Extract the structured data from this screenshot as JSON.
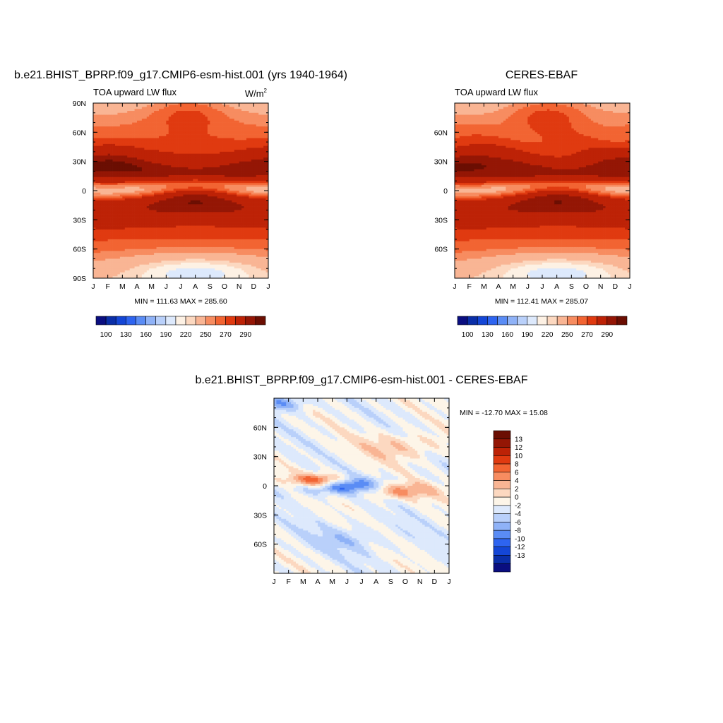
{
  "palette_abs": [
    "#0a0e80",
    "#0a2ea8",
    "#1446d6",
    "#2e64f0",
    "#5a8cf5",
    "#8fb2f7",
    "#b9d0fa",
    "#dde9fc",
    "#fdf1e4",
    "#fcd8c0",
    "#f9b594",
    "#f78c60",
    "#f26432",
    "#e03a10",
    "#bd2206",
    "#941605",
    "#6b0e02"
  ],
  "palette_diff": [
    "#0a0e80",
    "#0a2ea8",
    "#1446d6",
    "#2e64f0",
    "#5a8cf5",
    "#8fb2f7",
    "#b9d0fa",
    "#dde9fc",
    "#fdf5e8",
    "#fcd8c0",
    "#f9b594",
    "#f78c60",
    "#f26432",
    "#e03a10",
    "#bd2206",
    "#941605",
    "#6b0e02"
  ],
  "chart_data": [
    {
      "type": "heatmap",
      "title": "b.e21.BHIST_BPRP.f09_g17.CMIP6-esm-hist.001 (yrs 1940-1964)",
      "subtitle": "TOA upward LW flux",
      "units_base": "W/m",
      "units_sup": "2",
      "x_tick_labels": [
        "J",
        "F",
        "M",
        "A",
        "M",
        "J",
        "J",
        "A",
        "S",
        "O",
        "N",
        "D",
        "J"
      ],
      "y_tick_labels": [
        "90N",
        "60N",
        "30N",
        "0",
        "30S",
        "60S",
        "90S"
      ],
      "stats_text": "MIN = 111.63 MAX = 285.60",
      "min": 111.63,
      "max": 285.6,
      "contour_levels": [
        100,
        110,
        120,
        130,
        140,
        150,
        160,
        170,
        180,
        190,
        200,
        210,
        220,
        230,
        240,
        250,
        260,
        270,
        280,
        290
      ],
      "colorbar_labels": [
        "100",
        "130",
        "160",
        "190",
        "220",
        "250",
        "270",
        "290"
      ]
    },
    {
      "type": "heatmap",
      "title": "CERES-EBAF",
      "subtitle": "TOA upward LW flux",
      "x_tick_labels": [
        "J",
        "F",
        "M",
        "A",
        "M",
        "J",
        "J",
        "A",
        "S",
        "O",
        "N",
        "D",
        "J"
      ],
      "y_tick_labels": [
        "",
        "60N",
        "30N",
        "0",
        "30S",
        "60S",
        ""
      ],
      "stats_text": "MIN = 112.41 MAX = 285.07",
      "min": 112.41,
      "max": 285.07,
      "colorbar_labels": [
        "100",
        "130",
        "160",
        "190",
        "220",
        "250",
        "270",
        "290"
      ]
    },
    {
      "type": "heatmap",
      "title": "b.e21.BHIST_BPRP.f09_g17.CMIP6-esm-hist.001 - CERES-EBAF",
      "x_tick_labels": [
        "J",
        "F",
        "M",
        "A",
        "M",
        "J",
        "J",
        "A",
        "S",
        "O",
        "N",
        "D",
        "J"
      ],
      "y_tick_labels": [
        "",
        "60N",
        "30N",
        "0",
        "30S",
        "60S",
        ""
      ],
      "stats_text": "MIN = -12.70 MAX =  15.08",
      "min": -12.7,
      "max": 15.08,
      "colorbar_labels": [
        "13",
        "12",
        "10",
        "8",
        "6",
        "4",
        "2",
        "0",
        "-2",
        "-4",
        "-6",
        "-8",
        "-10",
        "-12",
        "-13"
      ]
    }
  ]
}
